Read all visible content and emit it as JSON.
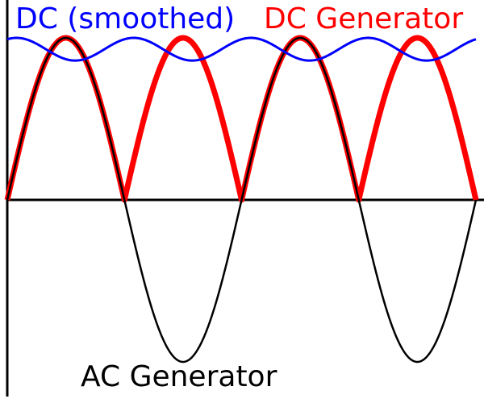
{
  "labels": {
    "dc_smoothed": "DC (smoothed)",
    "dc_generator": "DC Generator",
    "ac_generator": "AC Generator"
  },
  "colors": {
    "dc_smoothed": "#0000ff",
    "dc_generator": "#ff0000",
    "ac_generator": "#000000",
    "axes": "#000000"
  },
  "chart_data": {
    "type": "line",
    "cycles": 2,
    "series": [
      {
        "name": "AC Generator",
        "function": "sin",
        "amplitude": 1
      },
      {
        "name": "DC Generator",
        "function": "abs(sin)",
        "amplitude": 1
      },
      {
        "name": "DC (smoothed)",
        "function": "ripple",
        "mean": 0.93,
        "ripple": 0.07
      }
    ]
  }
}
